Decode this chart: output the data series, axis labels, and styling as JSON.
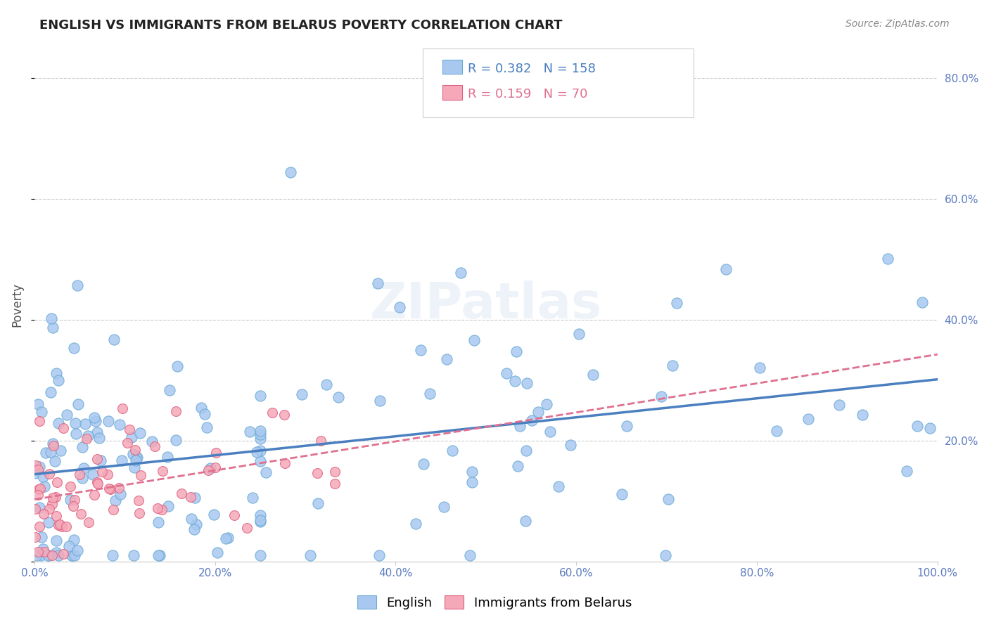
{
  "title": "ENGLISH VS IMMIGRANTS FROM BELARUS POVERTY CORRELATION CHART",
  "source": "Source: ZipAtlas.com",
  "xlabel": "",
  "ylabel": "Poverty",
  "xlim": [
    0,
    1.0
  ],
  "ylim": [
    0,
    0.85
  ],
  "xticks": [
    0.0,
    0.2,
    0.4,
    0.6,
    0.8,
    1.0
  ],
  "xtick_labels": [
    "0.0%",
    "20.0%",
    "40.0%",
    "60.0%",
    "80.0%",
    "100.0%"
  ],
  "yticks": [
    0.0,
    0.2,
    0.4,
    0.6,
    0.8
  ],
  "right_ytick_labels": [
    "20.0%",
    "40.0%",
    "60.0%",
    "80.0%"
  ],
  "right_yticks": [
    0.2,
    0.4,
    0.6,
    0.8
  ],
  "english_R": 0.382,
  "english_N": 158,
  "belarus_R": 0.159,
  "belarus_N": 70,
  "english_color": "#a8c8f0",
  "english_edge_color": "#6aaad4",
  "belarus_color": "#f4a8b8",
  "belarus_edge_color": "#e06080",
  "english_line_color": "#4a7fc0",
  "belarus_line_color": "#e07090",
  "grid_color": "#cccccc",
  "watermark": "ZIPatlas",
  "title_fontsize": 13,
  "axis_label_color": "#5a7abf"
}
